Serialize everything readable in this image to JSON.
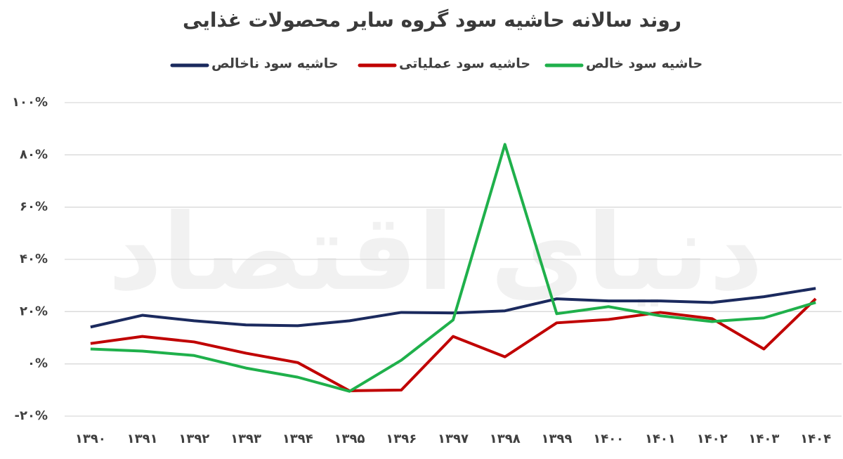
{
  "chart_data": {
    "type": "line",
    "title": "روند سالانه حاشیه سود گروه سایر محصولات غذایی",
    "watermark": "دنیای اقتصاد",
    "categories": [
      "۱۳۹۰",
      "۱۳۹۱",
      "۱۳۹۲",
      "۱۳۹۳",
      "۱۳۹۴",
      "۱۳۹۵",
      "۱۳۹۶",
      "۱۳۹۷",
      "۱۳۹۸",
      "۱۳۹۹",
      "۱۴۰۰",
      "۱۴۰۱",
      "۱۴۰۲",
      "۱۴۰۳",
      "۱۴۰۴"
    ],
    "series": [
      {
        "name": "حاشیه سود ناخالص",
        "color": "#1b2a5e",
        "values": [
          14.1,
          18.6,
          16.5,
          14.9,
          14.6,
          16.5,
          19.7,
          19.5,
          20.3,
          24.9,
          24.1,
          24.1,
          23.5,
          25.7,
          28.9
        ]
      },
      {
        "name": "حاشیه سود عملیاتی",
        "color": "#c00000",
        "values": [
          7.8,
          10.5,
          8.4,
          4.1,
          0.5,
          -10.3,
          -10,
          10.5,
          2.7,
          15.7,
          17,
          19.7,
          17.3,
          5.7,
          24.9
        ]
      },
      {
        "name": "حاشیه سود خالص",
        "color": "#1fb04b",
        "values": [
          5.7,
          4.9,
          3.2,
          -1.6,
          -5.1,
          -10.5,
          1.4,
          16.8,
          84,
          19.2,
          21.9,
          18.4,
          16.2,
          17.6,
          23.5
        ]
      }
    ],
    "ylim": [
      -20,
      100
    ],
    "yticks": [
      {
        "value": -20,
        "label": "-۲۰%"
      },
      {
        "value": 0,
        "label": "۰%"
      },
      {
        "value": 20,
        "label": "۲۰%"
      },
      {
        "value": 40,
        "label": "۴۰%"
      },
      {
        "value": 60,
        "label": "۶۰%"
      },
      {
        "value": 80,
        "label": "۸۰%"
      },
      {
        "value": 100,
        "label": "۱۰۰%"
      }
    ],
    "grid": true
  }
}
